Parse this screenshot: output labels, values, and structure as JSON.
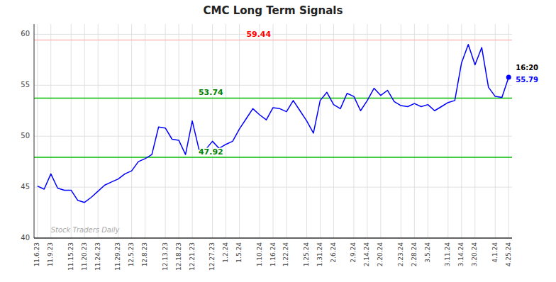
{
  "chart_data": {
    "type": "line",
    "title": "CMC Long Term Signals",
    "categories": [
      "11.6.23",
      null,
      "11.9.23",
      null,
      null,
      "11.15.23",
      null,
      "11.20.23",
      null,
      "11.24.23",
      null,
      null,
      "11.29.23",
      null,
      "12.5.23",
      null,
      "12.8.23",
      null,
      null,
      "12.13.23",
      null,
      "12.18.23",
      null,
      "12.21.23",
      null,
      null,
      "12.27.23",
      null,
      "1.2.24",
      null,
      "1.5.24",
      null,
      null,
      "1.10.24",
      null,
      "1.16.24",
      null,
      "1.22.24",
      null,
      null,
      "1.25.24",
      null,
      "1.31.24",
      null,
      "2.6.24",
      null,
      null,
      "2.9.24",
      null,
      "2.14.24",
      null,
      "2.20.24",
      null,
      null,
      "2.23.24",
      null,
      "2.28.24",
      null,
      "3.5.24",
      null,
      null,
      "3.11.24",
      null,
      "3.14.24",
      null,
      "3.20.24",
      null,
      null,
      "4.1.24",
      null,
      "4.25.24"
    ],
    "values": [
      45.1,
      44.8,
      46.3,
      44.9,
      44.7,
      44.7,
      43.7,
      43.5,
      44.0,
      44.6,
      45.2,
      45.5,
      45.8,
      46.3,
      46.6,
      47.5,
      47.8,
      48.2,
      50.9,
      50.8,
      49.7,
      49.6,
      48.2,
      51.5,
      48.7,
      48.7,
      49.5,
      48.8,
      49.2,
      49.5,
      50.7,
      51.7,
      52.7,
      52.1,
      51.6,
      52.8,
      52.7,
      52.4,
      53.5,
      52.5,
      51.5,
      50.3,
      53.5,
      54.3,
      53.1,
      52.7,
      54.2,
      53.9,
      52.5,
      53.5,
      54.7,
      54.0,
      54.5,
      53.4,
      53.0,
      52.9,
      53.2,
      52.9,
      53.1,
      52.5,
      52.9,
      53.3,
      53.5,
      57.2,
      59.0,
      57.0,
      58.7,
      54.8,
      53.9,
      53.8,
      55.79
    ],
    "color": "blue",
    "ylim": [
      40,
      61
    ],
    "yticks": [
      40,
      45,
      50,
      55,
      60
    ],
    "grid": true,
    "hlines": [
      {
        "text": "59.44",
        "y": 59.44,
        "color": "red",
        "line_color": "#ffbbbb"
      },
      {
        "text": "53.74",
        "y": 53.74,
        "color": "green",
        "line_color": "#00bb00"
      },
      {
        "text": "47.92",
        "y": 47.92,
        "color": "green",
        "line_color": "#00bb00"
      }
    ],
    "end_label": "16:20",
    "watermark": {
      "text": "Stock Traders Daily",
      "color": "#aaaaaa"
    }
  }
}
